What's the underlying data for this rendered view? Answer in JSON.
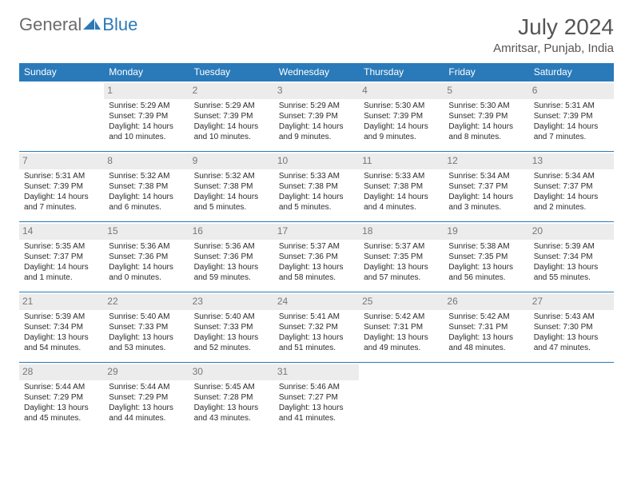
{
  "brand": {
    "part1": "General",
    "part2": "Blue"
  },
  "title": "July 2024",
  "location": "Amritsar, Punjab, India",
  "colors": {
    "header_bg": "#2a7ab9",
    "header_text": "#ffffff",
    "daynum_bg": "#ececec",
    "daynum_text": "#777777",
    "border": "#2a7ab9",
    "body_text": "#333333"
  },
  "layout": {
    "columns": 7,
    "rows": 5
  },
  "weekdays": [
    "Sunday",
    "Monday",
    "Tuesday",
    "Wednesday",
    "Thursday",
    "Friday",
    "Saturday"
  ],
  "days": [
    null,
    {
      "n": "1",
      "sunrise": "5:29 AM",
      "sunset": "7:39 PM",
      "daylight": "14 hours and 10 minutes."
    },
    {
      "n": "2",
      "sunrise": "5:29 AM",
      "sunset": "7:39 PM",
      "daylight": "14 hours and 10 minutes."
    },
    {
      "n": "3",
      "sunrise": "5:29 AM",
      "sunset": "7:39 PM",
      "daylight": "14 hours and 9 minutes."
    },
    {
      "n": "4",
      "sunrise": "5:30 AM",
      "sunset": "7:39 PM",
      "daylight": "14 hours and 9 minutes."
    },
    {
      "n": "5",
      "sunrise": "5:30 AM",
      "sunset": "7:39 PM",
      "daylight": "14 hours and 8 minutes."
    },
    {
      "n": "6",
      "sunrise": "5:31 AM",
      "sunset": "7:39 PM",
      "daylight": "14 hours and 7 minutes."
    },
    {
      "n": "7",
      "sunrise": "5:31 AM",
      "sunset": "7:39 PM",
      "daylight": "14 hours and 7 minutes."
    },
    {
      "n": "8",
      "sunrise": "5:32 AM",
      "sunset": "7:38 PM",
      "daylight": "14 hours and 6 minutes."
    },
    {
      "n": "9",
      "sunrise": "5:32 AM",
      "sunset": "7:38 PM",
      "daylight": "14 hours and 5 minutes."
    },
    {
      "n": "10",
      "sunrise": "5:33 AM",
      "sunset": "7:38 PM",
      "daylight": "14 hours and 5 minutes."
    },
    {
      "n": "11",
      "sunrise": "5:33 AM",
      "sunset": "7:38 PM",
      "daylight": "14 hours and 4 minutes."
    },
    {
      "n": "12",
      "sunrise": "5:34 AM",
      "sunset": "7:37 PM",
      "daylight": "14 hours and 3 minutes."
    },
    {
      "n": "13",
      "sunrise": "5:34 AM",
      "sunset": "7:37 PM",
      "daylight": "14 hours and 2 minutes."
    },
    {
      "n": "14",
      "sunrise": "5:35 AM",
      "sunset": "7:37 PM",
      "daylight": "14 hours and 1 minute."
    },
    {
      "n": "15",
      "sunrise": "5:36 AM",
      "sunset": "7:36 PM",
      "daylight": "14 hours and 0 minutes."
    },
    {
      "n": "16",
      "sunrise": "5:36 AM",
      "sunset": "7:36 PM",
      "daylight": "13 hours and 59 minutes."
    },
    {
      "n": "17",
      "sunrise": "5:37 AM",
      "sunset": "7:36 PM",
      "daylight": "13 hours and 58 minutes."
    },
    {
      "n": "18",
      "sunrise": "5:37 AM",
      "sunset": "7:35 PM",
      "daylight": "13 hours and 57 minutes."
    },
    {
      "n": "19",
      "sunrise": "5:38 AM",
      "sunset": "7:35 PM",
      "daylight": "13 hours and 56 minutes."
    },
    {
      "n": "20",
      "sunrise": "5:39 AM",
      "sunset": "7:34 PM",
      "daylight": "13 hours and 55 minutes."
    },
    {
      "n": "21",
      "sunrise": "5:39 AM",
      "sunset": "7:34 PM",
      "daylight": "13 hours and 54 minutes."
    },
    {
      "n": "22",
      "sunrise": "5:40 AM",
      "sunset": "7:33 PM",
      "daylight": "13 hours and 53 minutes."
    },
    {
      "n": "23",
      "sunrise": "5:40 AM",
      "sunset": "7:33 PM",
      "daylight": "13 hours and 52 minutes."
    },
    {
      "n": "24",
      "sunrise": "5:41 AM",
      "sunset": "7:32 PM",
      "daylight": "13 hours and 51 minutes."
    },
    {
      "n": "25",
      "sunrise": "5:42 AM",
      "sunset": "7:31 PM",
      "daylight": "13 hours and 49 minutes."
    },
    {
      "n": "26",
      "sunrise": "5:42 AM",
      "sunset": "7:31 PM",
      "daylight": "13 hours and 48 minutes."
    },
    {
      "n": "27",
      "sunrise": "5:43 AM",
      "sunset": "7:30 PM",
      "daylight": "13 hours and 47 minutes."
    },
    {
      "n": "28",
      "sunrise": "5:44 AM",
      "sunset": "7:29 PM",
      "daylight": "13 hours and 45 minutes."
    },
    {
      "n": "29",
      "sunrise": "5:44 AM",
      "sunset": "7:29 PM",
      "daylight": "13 hours and 44 minutes."
    },
    {
      "n": "30",
      "sunrise": "5:45 AM",
      "sunset": "7:28 PM",
      "daylight": "13 hours and 43 minutes."
    },
    {
      "n": "31",
      "sunrise": "5:46 AM",
      "sunset": "7:27 PM",
      "daylight": "13 hours and 41 minutes."
    },
    null,
    null,
    null
  ],
  "labels": {
    "sunrise": "Sunrise:",
    "sunset": "Sunset:",
    "daylight": "Daylight:"
  }
}
